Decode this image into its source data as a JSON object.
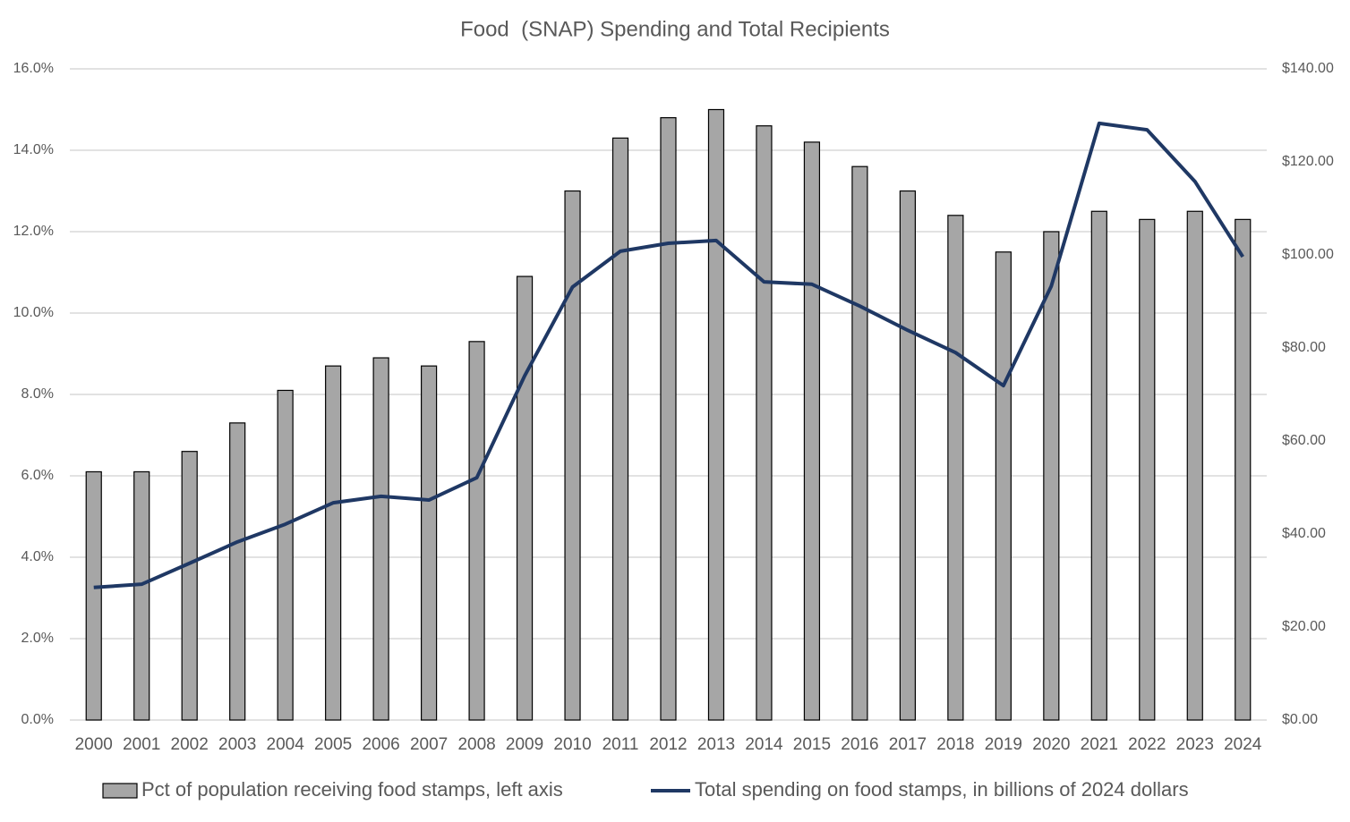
{
  "chart_data": {
    "type": "bar-line",
    "title": "Food  (SNAP) Spending and Total Recipients",
    "categories": [
      "2000",
      "2001",
      "2002",
      "2003",
      "2004",
      "2005",
      "2006",
      "2007",
      "2008",
      "2009",
      "2010",
      "2011",
      "2012",
      "2013",
      "2014",
      "2015",
      "2016",
      "2017",
      "2018",
      "2019",
      "2020",
      "2021",
      "2022",
      "2023",
      "2024"
    ],
    "series": [
      {
        "name": "Pct of population receiving food stamps, left axis",
        "type": "bar",
        "color": "#a6a6a6",
        "values": [
          6.1,
          6.1,
          6.6,
          7.3,
          8.1,
          8.7,
          8.9,
          8.7,
          9.3,
          10.9,
          13.0,
          14.3,
          14.8,
          15.0,
          14.6,
          14.2,
          13.6,
          13.0,
          12.4,
          11.5,
          12.0,
          12.5,
          12.3,
          12.5,
          12.3
        ]
      },
      {
        "name": "Total spending on food stamps, in billions of 2024 dollars",
        "type": "line",
        "color": "#1f3864",
        "axis": "y2",
        "values": [
          28.5,
          29.2,
          33.7,
          38.3,
          42.1,
          46.7,
          48.1,
          47.3,
          52.1,
          74.0,
          93.1,
          100.8,
          102.5,
          103.1,
          94.2,
          93.7,
          89.0,
          83.8,
          79.0,
          71.9,
          93.3,
          128.3,
          126.9,
          115.8,
          99.6
        ]
      }
    ],
    "ylim": [
      0,
      16
    ],
    "yticks": [
      {
        "value": 0,
        "label": "0.0%"
      },
      {
        "value": 2,
        "label": "2.0%"
      },
      {
        "value": 4,
        "label": "4.0%"
      },
      {
        "value": 6,
        "label": "6.0%"
      },
      {
        "value": 8,
        "label": "8.0%"
      },
      {
        "value": 10,
        "label": "10.0%"
      },
      {
        "value": 12,
        "label": "12.0%"
      },
      {
        "value": 14,
        "label": "14.0%"
      },
      {
        "value": 16,
        "label": "16.0%"
      }
    ],
    "y2lim": [
      0,
      140
    ],
    "y2ticks": [
      {
        "value": 0,
        "label": "$0.00"
      },
      {
        "value": 20,
        "label": "$20.00"
      },
      {
        "value": 40,
        "label": "$40.00"
      },
      {
        "value": 60,
        "label": "$60.00"
      },
      {
        "value": 80,
        "label": "$80.00"
      },
      {
        "value": 100,
        "label": "$100.00"
      },
      {
        "value": 120,
        "label": "$120.00"
      },
      {
        "value": 140,
        "label": "$140.00"
      }
    ],
    "grid": true,
    "legend": "bottom"
  }
}
